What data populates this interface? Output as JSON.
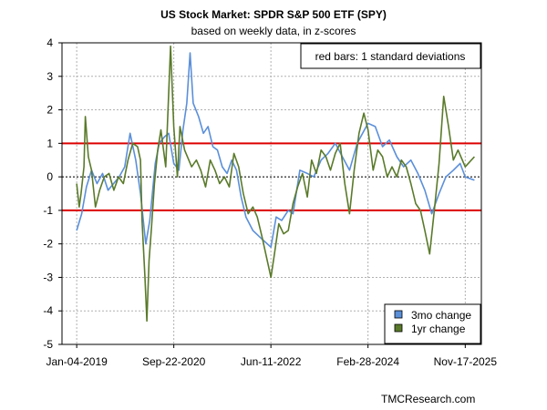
{
  "chart_data": {
    "type": "line",
    "title": "US Stock Market: SPDR S&P 500 ETF (SPY)",
    "subtitle": "based on weekly data, in z-scores",
    "annotation": "red bars: 1 standard deviations",
    "credit": "TMCResearch.com",
    "xlabel": "",
    "ylabel": "",
    "ylim": [
      -5,
      4
    ],
    "yticks": [
      "4",
      "3",
      "2",
      "1",
      "0",
      "-1",
      "-2",
      "-3",
      "-4",
      "-5"
    ],
    "x_range": [
      "2018-10-01",
      "2026-03-01"
    ],
    "xticks": [
      {
        "label": "Jan-04-2019",
        "date": "2019-01-04"
      },
      {
        "label": "Sep-22-2020",
        "date": "2020-09-22"
      },
      {
        "label": "Jun-11-2022",
        "date": "2022-06-11"
      },
      {
        "label": "Feb-28-2024",
        "date": "2024-02-28"
      },
      {
        "label": "Nov-17-2025",
        "date": "2025-11-17"
      }
    ],
    "reference_lines": [
      {
        "y": 1,
        "color": "#dd0000"
      },
      {
        "y": 0,
        "color": "#000000",
        "style": "dotted"
      },
      {
        "y": -1,
        "color": "#dd0000"
      }
    ],
    "grid": true,
    "legend_position": "bottom-right",
    "series": [
      {
        "name": "3mo change",
        "color": "#5b8fd9",
        "points": [
          [
            "2019-01-04",
            -1.6
          ],
          [
            "2019-02-05",
            -1.1
          ],
          [
            "2019-03-08",
            -0.3
          ],
          [
            "2019-04-10",
            0.2
          ],
          [
            "2019-05-15",
            -0.2
          ],
          [
            "2019-06-20",
            0.1
          ],
          [
            "2019-07-25",
            -0.4
          ],
          [
            "2019-08-30",
            -0.2
          ],
          [
            "2019-10-05",
            0.0
          ],
          [
            "2019-11-10",
            0.3
          ],
          [
            "2019-12-15",
            1.3
          ],
          [
            "2020-01-20",
            0.5
          ],
          [
            "2020-02-20",
            -0.5
          ],
          [
            "2020-03-25",
            -2.0
          ],
          [
            "2020-04-20",
            -1.3
          ],
          [
            "2020-05-25",
            0.4
          ],
          [
            "2020-06-20",
            1.0
          ],
          [
            "2020-07-25",
            1.2
          ],
          [
            "2020-08-20",
            1.3
          ],
          [
            "2020-09-22",
            0.4
          ],
          [
            "2020-10-25",
            0.2
          ],
          [
            "2020-11-20",
            1.4
          ],
          [
            "2020-12-15",
            2.2
          ],
          [
            "2021-01-05",
            3.7
          ],
          [
            "2021-01-25",
            2.2
          ],
          [
            "2021-03-01",
            1.8
          ],
          [
            "2021-04-01",
            1.3
          ],
          [
            "2021-05-01",
            1.5
          ],
          [
            "2021-06-01",
            0.9
          ],
          [
            "2021-07-01",
            0.8
          ],
          [
            "2021-08-01",
            0.3
          ],
          [
            "2021-09-01",
            0.1
          ],
          [
            "2021-10-01",
            0.5
          ],
          [
            "2021-11-01",
            0.2
          ],
          [
            "2021-12-01",
            -0.6
          ],
          [
            "2022-01-01",
            -1.2
          ],
          [
            "2022-02-15",
            -1.6
          ],
          [
            "2022-04-01",
            -1.8
          ],
          [
            "2022-06-11",
            -2.1
          ],
          [
            "2022-07-15",
            -1.2
          ],
          [
            "2022-08-20",
            -1.3
          ],
          [
            "2022-10-01",
            -1.0
          ],
          [
            "2022-11-01",
            -1.1
          ],
          [
            "2022-12-15",
            0.2
          ],
          [
            "2023-02-01",
            0.1
          ],
          [
            "2023-03-15",
            0.0
          ],
          [
            "2023-05-01",
            0.5
          ],
          [
            "2023-06-15",
            0.7
          ],
          [
            "2023-08-01",
            1.0
          ],
          [
            "2023-09-15",
            0.6
          ],
          [
            "2023-11-01",
            0.2
          ],
          [
            "2023-12-20",
            1.0
          ],
          [
            "2024-02-28",
            1.6
          ],
          [
            "2024-04-15",
            1.5
          ],
          [
            "2024-06-01",
            0.9
          ],
          [
            "2024-07-15",
            1.1
          ],
          [
            "2024-09-01",
            0.6
          ],
          [
            "2024-10-15",
            0.3
          ],
          [
            "2024-12-01",
            0.5
          ],
          [
            "2025-01-15",
            0.1
          ],
          [
            "2025-03-01",
            -0.4
          ],
          [
            "2025-04-15",
            -1.1
          ],
          [
            "2025-06-01",
            -0.5
          ],
          [
            "2025-07-15",
            0.0
          ],
          [
            "2025-09-01",
            0.2
          ],
          [
            "2025-10-15",
            0.4
          ],
          [
            "2025-11-17",
            0.0
          ],
          [
            "2026-01-15",
            -0.1
          ]
        ]
      },
      {
        "name": "1yr change",
        "color": "#5a7a2a",
        "points": [
          [
            "2019-01-04",
            -0.2
          ],
          [
            "2019-01-20",
            -0.9
          ],
          [
            "2019-02-01",
            -0.5
          ],
          [
            "2019-02-20",
            0.3
          ],
          [
            "2019-03-01",
            1.8
          ],
          [
            "2019-03-20",
            0.6
          ],
          [
            "2019-04-10",
            0.2
          ],
          [
            "2019-05-05",
            -0.9
          ],
          [
            "2019-06-01",
            -0.4
          ],
          [
            "2019-07-01",
            0.0
          ],
          [
            "2019-08-01",
            0.1
          ],
          [
            "2019-09-01",
            -0.4
          ],
          [
            "2019-10-01",
            0.0
          ],
          [
            "2019-11-01",
            -0.2
          ],
          [
            "2019-12-01",
            0.5
          ],
          [
            "2020-01-01",
            1.0
          ],
          [
            "2020-02-01",
            0.9
          ],
          [
            "2020-02-20",
            0.5
          ],
          [
            "2020-03-01",
            -1.3
          ],
          [
            "2020-03-20",
            -3.0
          ],
          [
            "2020-04-01",
            -4.3
          ],
          [
            "2020-04-15",
            -2.5
          ],
          [
            "2020-05-01",
            -1.5
          ],
          [
            "2020-05-20",
            -0.2
          ],
          [
            "2020-06-10",
            0.8
          ],
          [
            "2020-07-01",
            1.4
          ],
          [
            "2020-08-01",
            0.3
          ],
          [
            "2020-09-01",
            3.9
          ],
          [
            "2020-09-22",
            1.5
          ],
          [
            "2020-10-15",
            0.0
          ],
          [
            "2020-11-01",
            1.5
          ],
          [
            "2020-12-01",
            0.8
          ],
          [
            "2021-01-15",
            0.3
          ],
          [
            "2021-02-15",
            0.5
          ],
          [
            "2021-03-15",
            0.2
          ],
          [
            "2021-04-15",
            -0.3
          ],
          [
            "2021-05-15",
            0.5
          ],
          [
            "2021-06-15",
            0.2
          ],
          [
            "2021-07-15",
            -0.2
          ],
          [
            "2021-08-15",
            0.0
          ],
          [
            "2021-09-15",
            -0.3
          ],
          [
            "2021-10-15",
            0.7
          ],
          [
            "2021-11-15",
            0.3
          ],
          [
            "2021-12-15",
            -0.5
          ],
          [
            "2022-01-15",
            -1.1
          ],
          [
            "2022-02-15",
            -0.9
          ],
          [
            "2022-03-15",
            -1.2
          ],
          [
            "2022-04-15",
            -1.8
          ],
          [
            "2022-06-11",
            -3.0
          ],
          [
            "2022-07-01",
            -2.4
          ],
          [
            "2022-08-01",
            -1.4
          ],
          [
            "2022-09-01",
            -1.7
          ],
          [
            "2022-10-01",
            -1.6
          ],
          [
            "2022-11-01",
            -0.8
          ],
          [
            "2022-12-01",
            -0.3
          ],
          [
            "2023-01-01",
            0.1
          ],
          [
            "2023-02-01",
            -0.6
          ],
          [
            "2023-03-01",
            0.5
          ],
          [
            "2023-04-01",
            0.1
          ],
          [
            "2023-05-01",
            0.8
          ],
          [
            "2023-06-01",
            0.6
          ],
          [
            "2023-07-01",
            0.2
          ],
          [
            "2023-08-01",
            0.7
          ],
          [
            "2023-09-01",
            1.0
          ],
          [
            "2023-10-01",
            -0.2
          ],
          [
            "2023-11-01",
            -1.1
          ],
          [
            "2023-12-01",
            0.2
          ],
          [
            "2024-01-01",
            1.3
          ],
          [
            "2024-02-01",
            1.9
          ],
          [
            "2024-02-28",
            1.4
          ],
          [
            "2024-04-01",
            0.2
          ],
          [
            "2024-05-01",
            0.8
          ],
          [
            "2024-06-01",
            0.6
          ],
          [
            "2024-07-01",
            0.0
          ],
          [
            "2024-08-01",
            0.3
          ],
          [
            "2024-09-01",
            0.0
          ],
          [
            "2024-10-01",
            0.5
          ],
          [
            "2024-11-01",
            0.3
          ],
          [
            "2024-12-01",
            -0.2
          ],
          [
            "2025-01-01",
            -0.8
          ],
          [
            "2025-02-01",
            -1.0
          ],
          [
            "2025-03-01",
            -1.6
          ],
          [
            "2025-04-01",
            -2.3
          ],
          [
            "2025-05-01",
            -1.0
          ],
          [
            "2025-06-01",
            0.4
          ],
          [
            "2025-07-01",
            2.4
          ],
          [
            "2025-08-01",
            1.5
          ],
          [
            "2025-09-01",
            0.5
          ],
          [
            "2025-10-01",
            0.8
          ],
          [
            "2025-11-17",
            0.3
          ],
          [
            "2026-01-15",
            0.6
          ]
        ]
      }
    ]
  }
}
